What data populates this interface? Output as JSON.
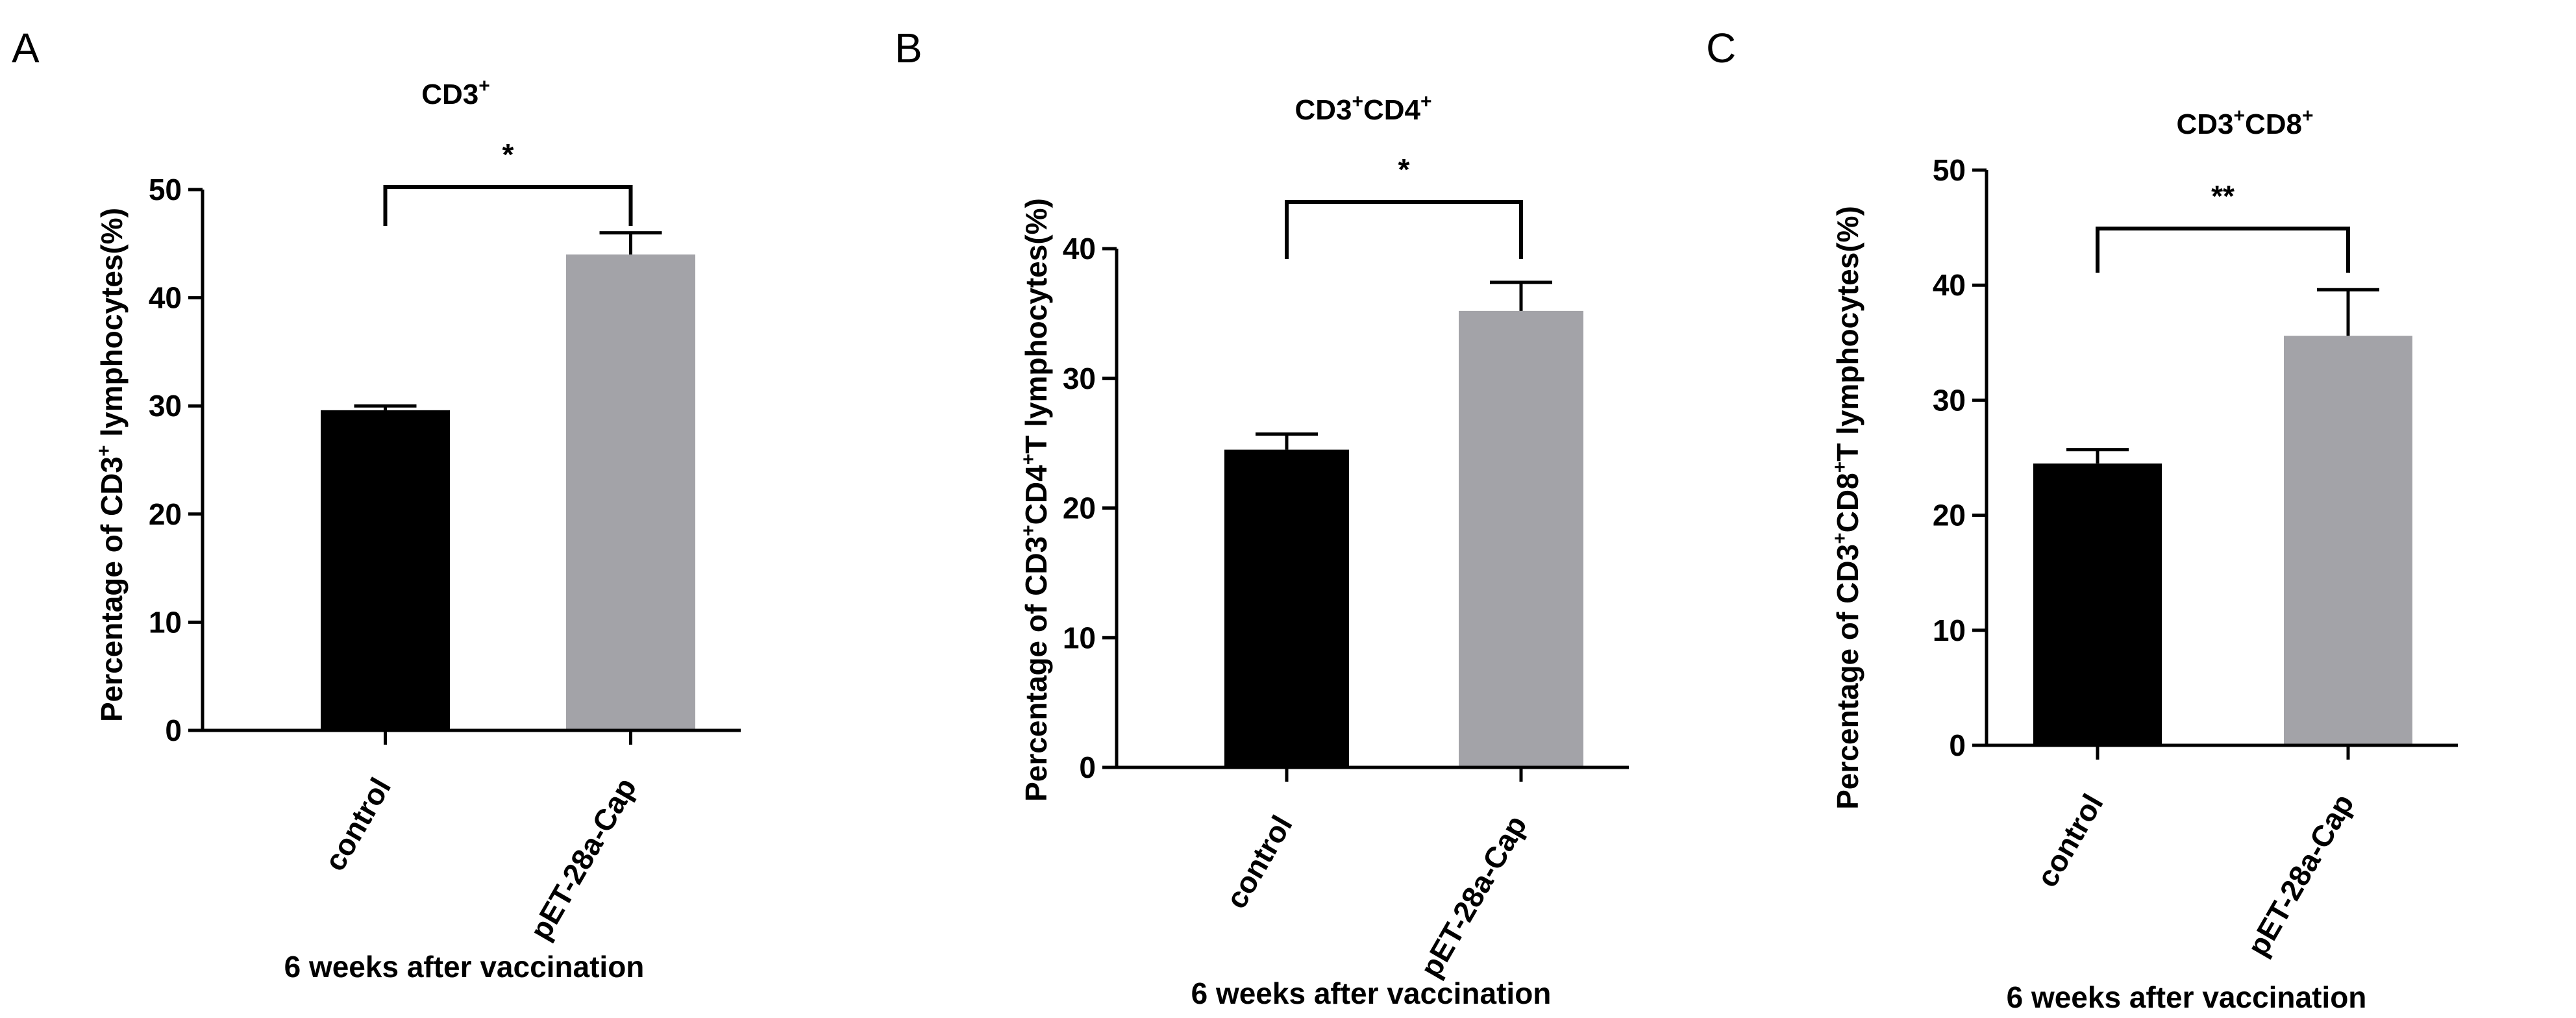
{
  "chart_data": [
    {
      "panel": "A",
      "type": "bar",
      "title_base": "CD3",
      "title_sup": "+",
      "ylabel_parts": [
        "Percentage of CD3",
        "+",
        " lymphocytes(%)"
      ],
      "xlabel": "6 weeks after vaccination",
      "categories": [
        "control",
        "pET-28a-Cap"
      ],
      "values": [
        29.6,
        44.0
      ],
      "errors": [
        0.4,
        2.0
      ],
      "colors": [
        "#000000",
        "#a3a3a8"
      ],
      "ylim": [
        0,
        50
      ],
      "yticks": [
        0,
        10,
        20,
        30,
        40,
        50
      ],
      "significance": "*"
    },
    {
      "panel": "B",
      "type": "bar",
      "title_parts": [
        "CD3",
        "+",
        "CD4",
        "+"
      ],
      "ylabel_parts": [
        "Percentage of CD3",
        "+",
        "CD4",
        "+",
        "T lymphocytes(%)"
      ],
      "xlabel": "6 weeks after vaccination",
      "categories": [
        "control",
        "pET-28a-Cap"
      ],
      "values": [
        24.5,
        35.2
      ],
      "errors": [
        1.2,
        2.2
      ],
      "colors": [
        "#000000",
        "#a3a3a8"
      ],
      "ylim": [
        0,
        40
      ],
      "yticks": [
        0,
        10,
        20,
        30,
        40
      ],
      "significance": "*"
    },
    {
      "panel": "C",
      "type": "bar",
      "title_parts": [
        "CD3",
        "+",
        "CD8",
        "+"
      ],
      "ylabel_parts": [
        "Percentage of CD3",
        "+",
        "CD8",
        "+",
        "T lymphocytes(%)"
      ],
      "xlabel": "6 weeks after vaccination",
      "categories": [
        "control",
        "pET-28a-Cap"
      ],
      "values": [
        24.5,
        35.6
      ],
      "errors": [
        1.2,
        4.0
      ],
      "colors": [
        "#000000",
        "#a3a3a8"
      ],
      "ylim": [
        0,
        50
      ],
      "yticks": [
        0,
        10,
        20,
        30,
        40,
        50
      ],
      "significance": "**"
    }
  ]
}
